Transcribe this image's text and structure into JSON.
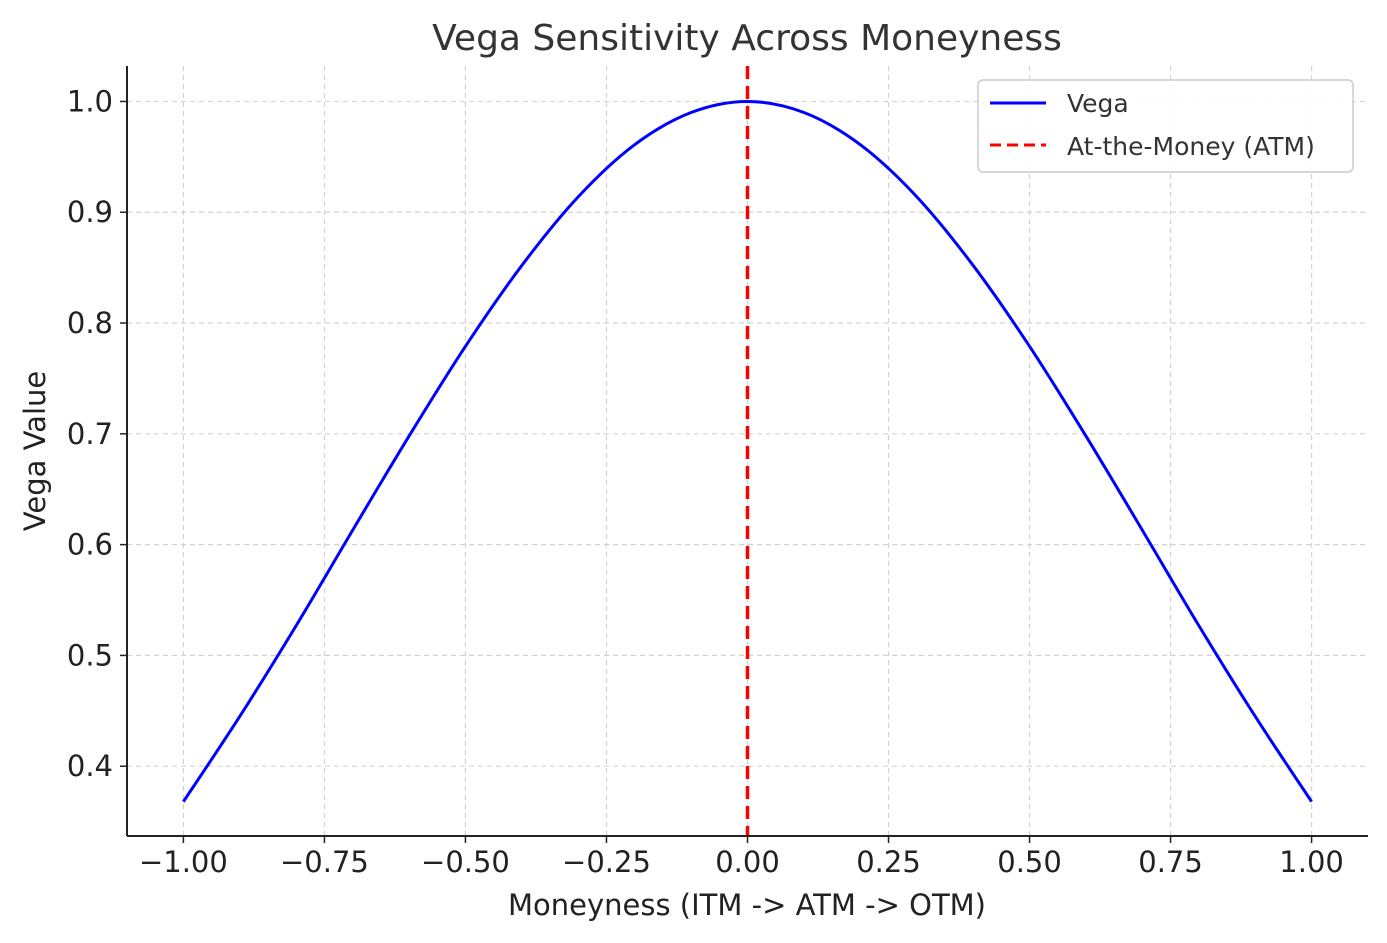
{
  "chart_data": {
    "type": "line",
    "title": "Vega Sensitivity Across Moneyness",
    "xlabel": "Moneyness (ITM -> ATM -> OTM)",
    "ylabel": "Vega Value",
    "xlim": [
      -1.1,
      1.1
    ],
    "ylim": [
      0.337,
      1.032
    ],
    "x_ticks": [
      -1.0,
      -0.75,
      -0.5,
      -0.25,
      0.0,
      0.25,
      0.5,
      0.75,
      1.0
    ],
    "x_tick_labels": [
      "−1.00",
      "−0.75",
      "−0.50",
      "−0.25",
      "0.00",
      "0.25",
      "0.50",
      "0.75",
      "1.00"
    ],
    "y_ticks": [
      0.4,
      0.5,
      0.6,
      0.7,
      0.8,
      0.9,
      1.0
    ],
    "y_tick_labels": [
      "0.4",
      "0.5",
      "0.6",
      "0.7",
      "0.8",
      "0.9",
      "1.0"
    ],
    "grid": true,
    "legend_position": "top-right",
    "series": [
      {
        "name": "Vega",
        "color": "#0000ff",
        "style": "solid",
        "x": [
          -1.0,
          -0.9,
          -0.8,
          -0.7,
          -0.6,
          -0.5,
          -0.4,
          -0.3,
          -0.2,
          -0.1,
          0.0,
          0.1,
          0.2,
          0.3,
          0.4,
          0.5,
          0.6,
          0.7,
          0.8,
          0.9,
          1.0
        ],
        "y": [
          0.368,
          0.445,
          0.527,
          0.613,
          0.698,
          0.779,
          0.852,
          0.914,
          0.961,
          0.99,
          1.0,
          0.99,
          0.961,
          0.914,
          0.852,
          0.779,
          0.698,
          0.613,
          0.527,
          0.445,
          0.368
        ]
      }
    ],
    "vlines": [
      {
        "name": "At-the-Money (ATM)",
        "x": 0.0,
        "color": "#ff0000",
        "style": "dashed"
      }
    ]
  }
}
